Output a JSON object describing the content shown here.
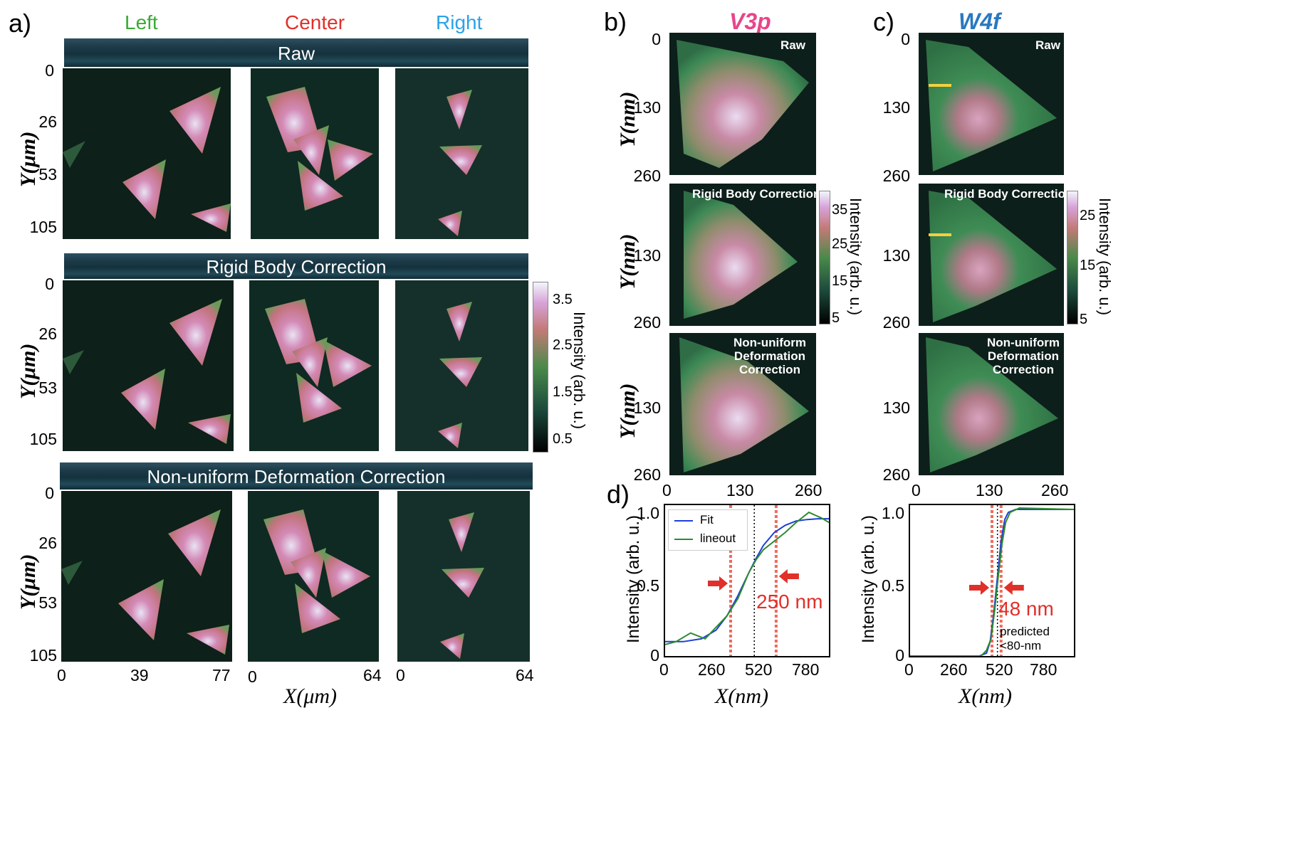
{
  "panel_a": {
    "label": "a)",
    "columns": [
      {
        "name": "Left",
        "color": "#3aaa35"
      },
      {
        "name": "Center",
        "color": "#e0302a"
      },
      {
        "name": "Right",
        "color": "#2aa3e8"
      }
    ],
    "rows": [
      "Raw",
      "Rigid Body Correction",
      "Non-uniform Deformation Correction"
    ],
    "y_label": "Y(μm)",
    "y_ticks": [
      "0",
      "26",
      "53",
      "105"
    ],
    "x_label": "X(μm)",
    "x_ticks_left": [
      "0",
      "39",
      "77"
    ],
    "x_ticks_center": [
      "0",
      "64"
    ],
    "x_ticks_right": [
      "0",
      "64"
    ],
    "colorbar": {
      "ticks": [
        "3.5",
        "2.5",
        "1.5",
        "0.5"
      ],
      "label": "Intensity (arb. u.)"
    }
  },
  "panel_b": {
    "label": "b)",
    "title": "V3p",
    "title_color": "#e8458b",
    "overlays": [
      "Raw",
      "Rigid Body Correction",
      "Non-uniform\nDeformation\nCorrection"
    ],
    "y_label": "Y(nm)",
    "y_ticks": [
      "0",
      "130",
      "260"
    ],
    "x_ticks": [
      "0",
      "130",
      "260"
    ],
    "colorbar": {
      "ticks": [
        "35",
        "25",
        "15",
        "5"
      ],
      "label": "Intensity (arb. u.)"
    }
  },
  "panel_c": {
    "label": "c)",
    "title": "W4f",
    "title_color": "#2a78c0",
    "overlays": [
      "Raw",
      "Rigid Body Correction",
      "Non-uniform\nDeformation\nCorrection"
    ],
    "y_ticks": [
      "0",
      "130",
      "260"
    ],
    "x_ticks": [
      "0",
      "130",
      "260"
    ],
    "colorbar": {
      "ticks": [
        "25",
        "15",
        "5"
      ],
      "label": "Intensity (arb. u.)"
    }
  },
  "panel_d": {
    "label": "d)",
    "y_label": "Intensity (arb. u.)",
    "x_label": "X(nm)",
    "left_annotation": "250 nm",
    "right_annotation": "48 nm",
    "predicted_note": "predicted\n<80-nm",
    "legend": [
      "Fit",
      "lineout"
    ]
  },
  "chart_data": [
    {
      "type": "line",
      "xlabel": "X(nm)",
      "ylabel": "Intensity (arb. u.)",
      "xlim": [
        0,
        900
      ],
      "ylim": [
        0,
        1.05
      ],
      "x_ticks": [
        "0",
        "260",
        "520",
        "780"
      ],
      "y_ticks": [
        "0",
        "0.5",
        "1.0"
      ],
      "series": [
        {
          "name": "Fit",
          "color": "#1f3fd8",
          "x": [
            0,
            100,
            200,
            280,
            340,
            400,
            460,
            500,
            540,
            600,
            660,
            720,
            780,
            840,
            900
          ],
          "y": [
            0.1,
            0.1,
            0.12,
            0.18,
            0.28,
            0.42,
            0.58,
            0.68,
            0.77,
            0.86,
            0.91,
            0.94,
            0.95,
            0.955,
            0.955
          ]
        },
        {
          "name": "lineout",
          "color": "#2e8b2e",
          "x": [
            0,
            60,
            140,
            220,
            280,
            340,
            400,
            460,
            500,
            540,
            600,
            660,
            720,
            790,
            860,
            900
          ],
          "y": [
            0.08,
            0.1,
            0.16,
            0.12,
            0.2,
            0.28,
            0.4,
            0.58,
            0.67,
            0.74,
            0.8,
            0.86,
            0.93,
            1.0,
            0.96,
            0.93
          ]
        }
      ],
      "markers": {
        "red_dashed": [
          360,
          610
        ],
        "black_dotted": [
          490
        ]
      }
    },
    {
      "type": "line",
      "xlabel": "X(nm)",
      "ylabel": "Intensity (arb. u.)",
      "xlim": [
        0,
        900
      ],
      "ylim": [
        0,
        1.05
      ],
      "x_ticks": [
        "0",
        "260",
        "520",
        "780"
      ],
      "y_ticks": [
        "0",
        "0.5",
        "1.0"
      ],
      "series": [
        {
          "name": "Fit",
          "color": "#1f3fd8",
          "x": [
            0,
            380,
            420,
            440,
            460,
            480,
            500,
            520,
            540,
            580,
            900
          ],
          "y": [
            0,
            0,
            0.02,
            0.1,
            0.3,
            0.55,
            0.8,
            0.95,
            1.0,
            1.02,
            1.02
          ]
        },
        {
          "name": "lineout",
          "color": "#2e8b2e",
          "x": [
            0,
            390,
            420,
            445,
            465,
            485,
            505,
            525,
            550,
            600,
            900
          ],
          "y": [
            0,
            0,
            0.04,
            0.12,
            0.32,
            0.56,
            0.78,
            0.93,
            1.0,
            1.03,
            1.02
          ]
        }
      ],
      "markers": {
        "red_dashed": [
          450,
          500
        ],
        "black_dotted": [
          480
        ]
      }
    }
  ]
}
